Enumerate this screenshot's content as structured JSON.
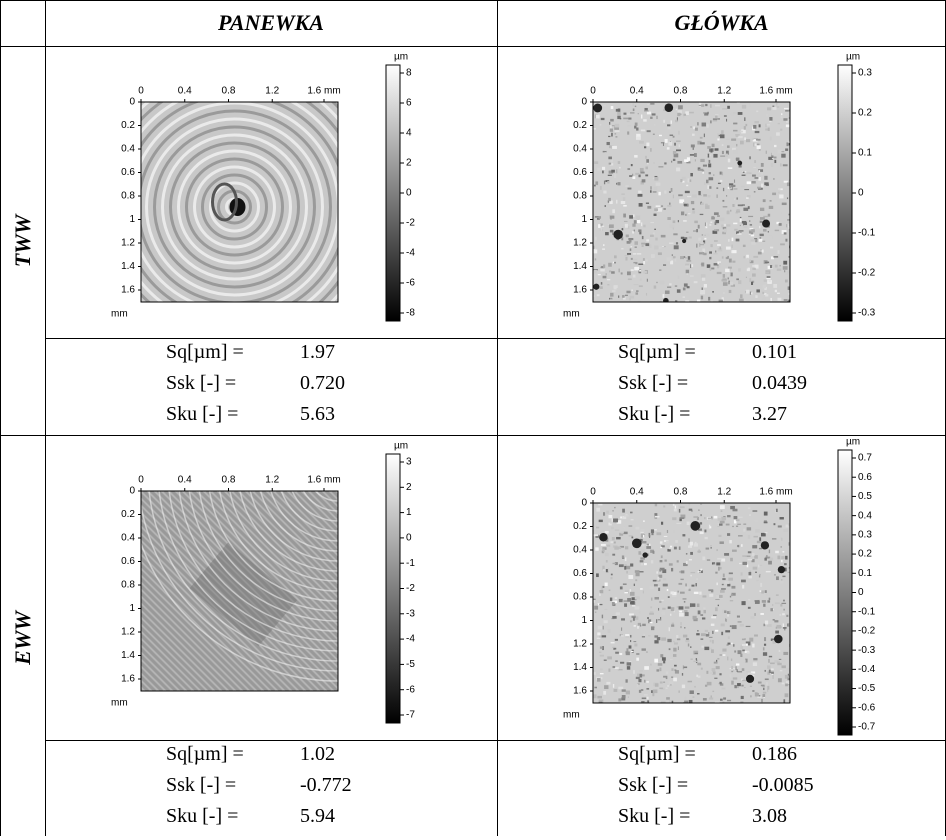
{
  "header": {
    "col1": "PANEWKA",
    "col2": "GŁÓWKA"
  },
  "rows": [
    {
      "label": "TWW",
      "panels": [
        {
          "x_ticks": [
            "0",
            "0.4",
            "0.8",
            "1.2",
            "1.6 mm"
          ],
          "y_ticks": [
            "0",
            "0.2",
            "0.4",
            "0.6",
            "0.8",
            "1",
            "1.2",
            "1.4",
            "1.6"
          ],
          "y_unit": "mm",
          "colorbar_unit": "µm",
          "colorbar_ticks": [
            8,
            6,
            4,
            2,
            0,
            -2,
            -4,
            -6,
            -8
          ],
          "stats": [
            {
              "name": "Sq[µm] =",
              "value": "1.97"
            },
            {
              "name": "Ssk [-] =",
              "value": "0.720"
            },
            {
              "name": "Sku [-] =",
              "value": "5.63"
            }
          ]
        },
        {
          "x_ticks": [
            "0",
            "0.4",
            "0.8",
            "1.2",
            "1.6 mm"
          ],
          "y_ticks": [
            "0",
            "0.2",
            "0.4",
            "0.6",
            "0.8",
            "1",
            "1.2",
            "1.4",
            "1.6"
          ],
          "y_unit": "mm",
          "colorbar_unit": "µm",
          "colorbar_ticks": [
            0.3,
            0.2,
            0.1,
            0,
            -0.1,
            -0.2,
            -0.3
          ],
          "stats": [
            {
              "name": "Sq[µm] =",
              "value": "0.101"
            },
            {
              "name": "Ssk [-] =",
              "value": "0.0439"
            },
            {
              "name": "Sku [-] =",
              "value": "3.27"
            }
          ]
        }
      ]
    },
    {
      "label": "EWW",
      "panels": [
        {
          "x_ticks": [
            "0",
            "0.4",
            "0.8",
            "1.2",
            "1.6 mm"
          ],
          "y_ticks": [
            "0",
            "0.2",
            "0.4",
            "0.6",
            "0.8",
            "1",
            "1.2",
            "1.4",
            "1.6"
          ],
          "y_unit": "mm",
          "colorbar_unit": "µm",
          "colorbar_ticks": [
            3,
            2,
            1,
            0,
            -1,
            -2,
            -3,
            -4,
            -5,
            -6,
            -7
          ],
          "stats": [
            {
              "name": "Sq[µm] =",
              "value": "1.02"
            },
            {
              "name": "Ssk [-] =",
              "value": "-0.772"
            },
            {
              "name": "Sku [-] =",
              "value": "5.94"
            }
          ]
        },
        {
          "x_ticks": [
            "0",
            "0.4",
            "0.8",
            "1.2",
            "1.6 mm"
          ],
          "y_ticks": [
            "0",
            "0.2",
            "0.4",
            "0.6",
            "0.8",
            "1",
            "1.2",
            "1.4",
            "1.6"
          ],
          "y_unit": "mm",
          "colorbar_unit": "µm",
          "colorbar_ticks": [
            0.7,
            0.6,
            0.5,
            0.4,
            0.3,
            0.2,
            0.1,
            0,
            -0.1,
            -0.2,
            -0.3,
            -0.4,
            -0.5,
            -0.6,
            -0.7
          ],
          "stats": [
            {
              "name": "Sq[µm] =",
              "value": "0.186"
            },
            {
              "name": "Ssk [-] =",
              "value": "-0.0085"
            },
            {
              "name": "Sku [-] =",
              "value": "3.08"
            }
          ]
        }
      ]
    }
  ]
}
